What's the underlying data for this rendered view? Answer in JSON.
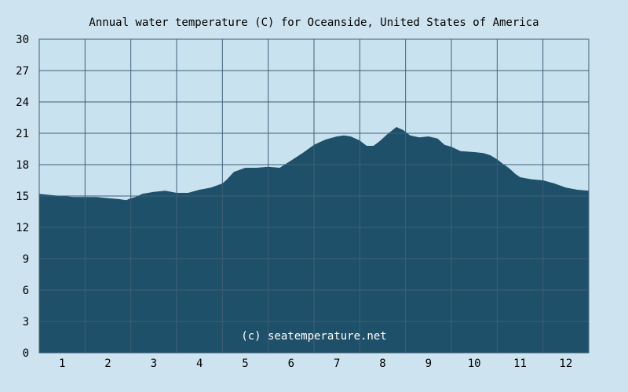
{
  "chart_data": {
    "type": "area",
    "title": "Annual water temperature (C) for Oceanside, United States of America",
    "watermark": "(c) seatemperature.net",
    "xlabel": "",
    "ylabel": "",
    "x_ticks": [
      "1",
      "2",
      "3",
      "4",
      "5",
      "6",
      "7",
      "8",
      "9",
      "10",
      "11",
      "12"
    ],
    "y_ticks": [
      "0",
      "3",
      "6",
      "9",
      "12",
      "15",
      "18",
      "21",
      "24",
      "27",
      "30"
    ],
    "xlim": [
      0.5,
      12.5
    ],
    "ylim": [
      0,
      30
    ],
    "grid": true,
    "legend": "none",
    "colors": {
      "background": "#cde3ef",
      "plot_background": "#c9e2ef",
      "area": "#1e5069",
      "grid": "#3f5f77"
    },
    "series": [
      {
        "x": [
          0.5,
          0.75,
          1.0,
          1.25,
          1.5,
          1.75,
          2.0,
          2.25,
          2.4,
          2.5,
          2.6,
          2.75,
          3.0,
          3.25,
          3.5,
          3.75,
          4.0,
          4.25,
          4.5,
          4.6,
          4.75,
          5.0,
          5.25,
          5.5,
          5.75,
          6.0,
          6.25,
          6.5,
          6.75,
          7.0,
          7.15,
          7.3,
          7.5,
          7.65,
          7.8,
          7.95,
          8.1,
          8.3,
          8.45,
          8.6,
          8.8,
          9.0,
          9.2,
          9.35,
          9.5,
          9.7,
          10.0,
          10.2,
          10.35,
          10.5,
          10.65,
          10.75,
          10.9,
          11.0,
          11.25,
          11.5,
          11.75,
          12.0,
          12.25,
          12.5
        ],
        "y": [
          15.2,
          15.1,
          15.0,
          14.9,
          14.9,
          14.9,
          14.8,
          14.7,
          14.6,
          14.8,
          14.9,
          15.2,
          15.4,
          15.5,
          15.3,
          15.3,
          15.6,
          15.8,
          16.2,
          16.6,
          17.3,
          17.7,
          17.7,
          17.8,
          17.7,
          18.4,
          19.1,
          19.9,
          20.4,
          20.7,
          20.8,
          20.7,
          20.3,
          19.8,
          19.8,
          20.3,
          20.9,
          21.6,
          21.3,
          20.8,
          20.6,
          20.7,
          20.5,
          19.9,
          19.7,
          19.3,
          19.2,
          19.1,
          18.9,
          18.5,
          18.0,
          17.7,
          17.1,
          16.8,
          16.6,
          16.5,
          16.2,
          15.8,
          15.6,
          15.5
        ]
      }
    ]
  }
}
